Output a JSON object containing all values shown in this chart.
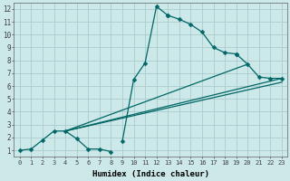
{
  "background_color": "#cce8e8",
  "grid_color": "#aacccc",
  "line_color": "#006666",
  "xlabel": "Humidex (Indice chaleur)",
  "xlim": [
    -0.5,
    23.5
  ],
  "ylim": [
    0.5,
    12.5
  ],
  "xticks": [
    0,
    1,
    2,
    3,
    4,
    5,
    6,
    7,
    8,
    9,
    10,
    11,
    12,
    13,
    14,
    15,
    16,
    17,
    18,
    19,
    20,
    21,
    22,
    23
  ],
  "yticks": [
    1,
    2,
    3,
    4,
    5,
    6,
    7,
    8,
    9,
    10,
    11,
    12
  ],
  "seg1_x": [
    0,
    1,
    2,
    3,
    4,
    5,
    6,
    7,
    8
  ],
  "seg1_y": [
    1.0,
    1.1,
    1.8,
    2.5,
    2.5,
    1.9,
    1.1,
    1.1,
    0.9
  ],
  "seg2_x": [
    9,
    10,
    11,
    12,
    13
  ],
  "seg2_y": [
    1.7,
    6.5,
    7.8,
    12.2,
    11.5
  ],
  "seg3_x": [
    13,
    14,
    15,
    16,
    17,
    18,
    19
  ],
  "seg3_y": [
    11.5,
    11.2,
    10.8,
    10.2,
    9.0,
    8.6,
    8.5
  ],
  "seg4_x": [
    19,
    20,
    21,
    22,
    23
  ],
  "seg4_y": [
    8.5,
    7.7,
    6.7,
    6.6,
    6.6
  ],
  "trend1_x": [
    4,
    23
  ],
  "trend1_y": [
    2.5,
    6.6
  ],
  "trend2_x": [
    4,
    20
  ],
  "trend2_y": [
    2.5,
    7.7
  ],
  "trend3_x": [
    4,
    23
  ],
  "trend3_y": [
    2.5,
    6.3
  ]
}
